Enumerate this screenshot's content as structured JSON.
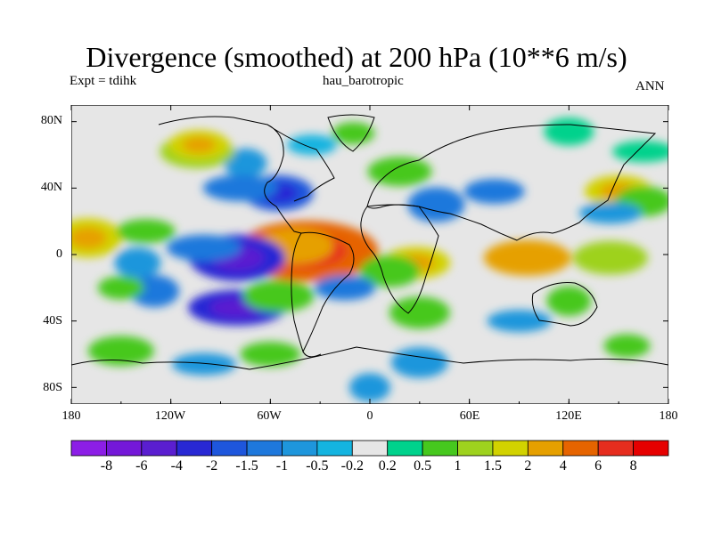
{
  "chart_data": {
    "type": "heatmap",
    "title": "Divergence (smoothed) at 200 hPa (10**6 m/s)",
    "subtitle_left": "Expt = tdihk",
    "subtitle_center": "hau_barotropic",
    "subtitle_right": "ANN",
    "x_axis": {
      "range": [
        -180,
        180
      ],
      "tick_values": [
        -180,
        -120,
        -60,
        0,
        60,
        120,
        180
      ],
      "tick_labels": [
        "180",
        "120W",
        "60W",
        "0",
        "60E",
        "120E",
        "180"
      ]
    },
    "y_axis": {
      "range": [
        -90,
        90
      ],
      "tick_values": [
        80,
        40,
        0,
        -40,
        -80
      ],
      "tick_labels": [
        "80N",
        "40N",
        "0",
        "40S",
        "80S"
      ]
    },
    "colorbar": {
      "labels": [
        "-8",
        "-6",
        "-4",
        "-2",
        "-1.5",
        "-1",
        "-0.5",
        "-0.2",
        "0.2",
        "0.5",
        "1",
        "1.5",
        "2",
        "4",
        "6",
        "8"
      ],
      "colors": [
        "#8c1ee6",
        "#7418d8",
        "#5a1ed0",
        "#2828d4",
        "#1e56dc",
        "#1e78dc",
        "#1e96dc",
        "#14b4e0",
        "#e6e6e6",
        "#00d28c",
        "#46c81e",
        "#9ed21e",
        "#d2d200",
        "#e6a000",
        "#e66400",
        "#e62d1e",
        "#e60000"
      ]
    },
    "features": [
      {
        "label": "band_n80",
        "lon": -10,
        "lat": 73,
        "value": 0.6
      },
      {
        "label": "band_n80_b",
        "lon": 120,
        "lat": 74,
        "value": 0.4
      },
      {
        "label": "np_green",
        "lon": 165,
        "lat": 62,
        "value": 0.5
      },
      {
        "label": "n_am_east",
        "lon": -75,
        "lat": 55,
        "value": -0.6
      },
      {
        "label": "atl_n",
        "lon": -35,
        "lat": 66,
        "value": -0.4
      },
      {
        "label": "na_coast",
        "lon": -104,
        "lat": 62,
        "value": 1.2
      },
      {
        "label": "na_coast2",
        "lon": -103,
        "lat": 66,
        "value": 1.6
      },
      {
        "label": "atl_blue",
        "lon": -55,
        "lat": 37,
        "value": -1.5
      },
      {
        "label": "atl_blue2",
        "lon": -78,
        "lat": 40,
        "value": -1.2
      },
      {
        "label": "med_blue",
        "lon": 40,
        "lat": 30,
        "value": -1.4
      },
      {
        "label": "asia_blue",
        "lon": 75,
        "lat": 38,
        "value": -1.0
      },
      {
        "label": "europe_green",
        "lon": 18,
        "lat": 50,
        "value": 0.6
      },
      {
        "label": "np_orange",
        "lon": 150,
        "lat": 38,
        "value": 2.0
      },
      {
        "label": "np_green2",
        "lon": 165,
        "lat": 32,
        "value": 0.8
      },
      {
        "label": "pac_blue_n",
        "lon": 145,
        "lat": 25,
        "value": -0.5
      },
      {
        "label": "epac_orange",
        "lon": -170,
        "lat": 10,
        "value": 2.0
      },
      {
        "label": "epac_green",
        "lon": -135,
        "lat": 14,
        "value": 0.9
      },
      {
        "label": "amazon_red",
        "lon": -38,
        "lat": 2,
        "value": 5.0
      },
      {
        "label": "amazon_orange",
        "lon": -45,
        "lat": 5,
        "value": 2.5
      },
      {
        "label": "pac_blue_eq",
        "lon": -80,
        "lat": -2,
        "value": -3.0
      },
      {
        "label": "pac_blue_eq2",
        "lon": -100,
        "lat": 4,
        "value": -1.2
      },
      {
        "label": "pac_blue_eq3",
        "lon": -140,
        "lat": -5,
        "value": -0.8
      },
      {
        "label": "io_orange",
        "lon": 95,
        "lat": -2,
        "value": 2.5
      },
      {
        "label": "io_green",
        "lon": 145,
        "lat": -2,
        "value": 1.2
      },
      {
        "label": "africa_orange",
        "lon": 28,
        "lat": -5,
        "value": 2.0
      },
      {
        "label": "africa_green",
        "lon": 12,
        "lat": -10,
        "value": 1.0
      },
      {
        "label": "sp_blue",
        "lon": -80,
        "lat": -32,
        "value": -2.5
      },
      {
        "label": "sp_blue2",
        "lon": -130,
        "lat": -22,
        "value": -1.0
      },
      {
        "label": "satl_blue",
        "lon": -15,
        "lat": -20,
        "value": -1.0
      },
      {
        "label": "satl_green",
        "lon": -55,
        "lat": -25,
        "value": 1.0
      },
      {
        "label": "spac_green",
        "lon": -150,
        "lat": -20,
        "value": 0.8
      },
      {
        "label": "safr_green",
        "lon": 30,
        "lat": -35,
        "value": 1.0
      },
      {
        "label": "sio_blue",
        "lon": 90,
        "lat": -40,
        "value": -0.6
      },
      {
        "label": "aus_green",
        "lon": 120,
        "lat": -28,
        "value": 0.7
      },
      {
        "label": "so_green",
        "lon": -60,
        "lat": -60,
        "value": 1.0
      },
      {
        "label": "so_green2",
        "lon": -150,
        "lat": -58,
        "value": 0.7
      },
      {
        "label": "so_green3",
        "lon": 155,
        "lat": -55,
        "value": 0.8
      },
      {
        "label": "so_blue",
        "lon": 30,
        "lat": -65,
        "value": -0.8
      },
      {
        "label": "so_blue2",
        "lon": -100,
        "lat": -66,
        "value": -0.6
      },
      {
        "label": "ant_blue",
        "lon": 0,
        "lat": -80,
        "value": -0.5
      }
    ]
  }
}
